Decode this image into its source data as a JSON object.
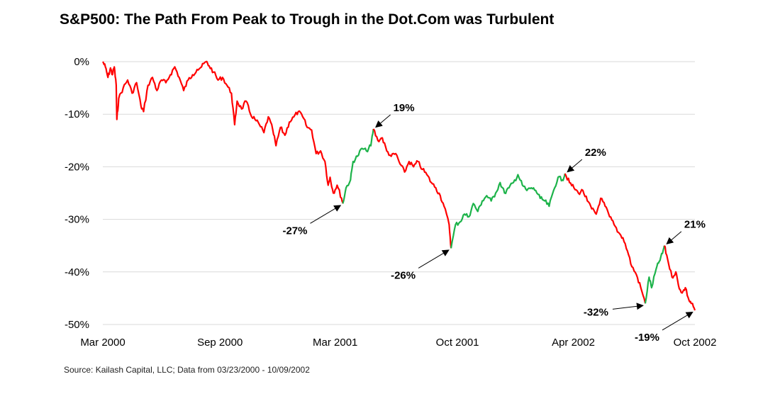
{
  "title": "S&P500: The Path From Peak to Trough in the Dot.Com was Turbulent",
  "source": "Source: Kailash Capital, LLC; Data from 03/23/2000 - 10/09/2002",
  "colors": {
    "decline": "#ff0000",
    "rally": "#1db34a",
    "grid": "#d9d9d9",
    "arrow": "#000000"
  },
  "chart_data": {
    "type": "line",
    "title": "S&P500: The Path From Peak to Trough in the Dot.Com was Turbulent",
    "xlabel": "",
    "ylabel": "",
    "xlim": [
      "2000-03-23",
      "2002-10-09"
    ],
    "ylim": [
      -50,
      0
    ],
    "grid": "horizontal",
    "x_tick_labels": [
      "Mar 2000",
      "Sep 2000",
      "Mar 2001",
      "Oct 2001",
      "Apr 2002",
      "Oct 2002"
    ],
    "x_tick_dates": [
      "2000-03-23",
      "2000-09-23",
      "2001-03-23",
      "2001-10-01",
      "2002-04-01",
      "2002-10-09"
    ],
    "y_ticks": [
      0,
      -10,
      -20,
      -30,
      -40,
      -50
    ],
    "y_tick_labels": [
      "0%",
      "-10%",
      "-20%",
      "-30%",
      "-40%",
      "-50%"
    ],
    "series": [
      {
        "values_pct_from_peak": [
          [
            "2000-03-23",
            0.0
          ],
          [
            "2000-03-27",
            -1.0
          ],
          [
            "2000-03-31",
            -3.0
          ],
          [
            "2000-04-04",
            -1.2
          ],
          [
            "2000-04-07",
            -2.5
          ],
          [
            "2000-04-10",
            -1.0
          ],
          [
            "2000-04-13",
            -4.5
          ],
          [
            "2000-04-14",
            -11.0
          ],
          [
            "2000-04-17",
            -7.0
          ],
          [
            "2000-04-24",
            -5.0
          ],
          [
            "2000-05-01",
            -3.5
          ],
          [
            "2000-05-08",
            -6.0
          ],
          [
            "2000-05-15",
            -4.0
          ],
          [
            "2000-05-22",
            -8.5
          ],
          [
            "2000-05-26",
            -9.5
          ],
          [
            "2000-06-02",
            -4.5
          ],
          [
            "2000-06-09",
            -3.0
          ],
          [
            "2000-06-16",
            -5.5
          ],
          [
            "2000-06-23",
            -3.5
          ],
          [
            "2000-06-30",
            -4.0
          ],
          [
            "2000-07-07",
            -2.5
          ],
          [
            "2000-07-14",
            -1.0
          ],
          [
            "2000-07-21",
            -3.0
          ],
          [
            "2000-07-28",
            -5.5
          ],
          [
            "2000-08-04",
            -3.5
          ],
          [
            "2000-08-11",
            -2.5
          ],
          [
            "2000-08-18",
            -1.5
          ],
          [
            "2000-08-25",
            -1.0
          ],
          [
            "2000-09-01",
            0.0
          ],
          [
            "2000-09-06",
            -0.8
          ],
          [
            "2000-09-13",
            -2.0
          ],
          [
            "2000-09-20",
            -3.5
          ],
          [
            "2000-09-27",
            -3.0
          ],
          [
            "2000-10-04",
            -4.5
          ],
          [
            "2000-10-11",
            -6.0
          ],
          [
            "2000-10-16",
            -12.0
          ],
          [
            "2000-10-20",
            -7.5
          ],
          [
            "2000-10-27",
            -9.0
          ],
          [
            "2000-11-03",
            -7.5
          ],
          [
            "2000-11-10",
            -10.0
          ],
          [
            "2000-11-17",
            -11.0
          ],
          [
            "2000-11-24",
            -12.0
          ],
          [
            "2000-12-01",
            -13.5
          ],
          [
            "2000-12-08",
            -10.5
          ],
          [
            "2000-12-15",
            -13.0
          ],
          [
            "2000-12-20",
            -16.0
          ],
          [
            "2000-12-27",
            -12.5
          ],
          [
            "2001-01-03",
            -14.0
          ],
          [
            "2001-01-10",
            -11.5
          ],
          [
            "2001-01-17",
            -10.5
          ],
          [
            "2001-01-24",
            -9.5
          ],
          [
            "2001-01-31",
            -10.5
          ],
          [
            "2001-02-07",
            -12.5
          ],
          [
            "2001-02-14",
            -13.0
          ],
          [
            "2001-02-21",
            -17.5
          ],
          [
            "2001-02-28",
            -17.0
          ],
          [
            "2001-03-07",
            -19.0
          ],
          [
            "2001-03-12",
            -23.5
          ],
          [
            "2001-03-15",
            -22.0
          ],
          [
            "2001-03-20",
            -25.0
          ],
          [
            "2001-03-26",
            -23.5
          ],
          [
            "2001-04-02",
            -26.0
          ],
          [
            "2001-04-04",
            -27.0
          ]
        ],
        "color": "decline"
      },
      {
        "values_pct_from_peak": [
          [
            "2001-04-04",
            -27.0
          ],
          [
            "2001-04-09",
            -24.0
          ],
          [
            "2001-04-16",
            -22.5
          ],
          [
            "2001-04-20",
            -19.0
          ],
          [
            "2001-04-27",
            -18.0
          ],
          [
            "2001-05-04",
            -16.5
          ],
          [
            "2001-05-11",
            -17.0
          ],
          [
            "2001-05-18",
            -16.0
          ],
          [
            "2001-05-22",
            -12.8
          ]
        ],
        "color": "rally"
      },
      {
        "values_pct_from_peak": [
          [
            "2001-05-22",
            -12.8
          ],
          [
            "2001-05-29",
            -15.0
          ],
          [
            "2001-06-05",
            -14.5
          ],
          [
            "2001-06-12",
            -17.0
          ],
          [
            "2001-06-19",
            -18.0
          ],
          [
            "2001-06-26",
            -17.5
          ],
          [
            "2001-07-03",
            -19.5
          ],
          [
            "2001-07-10",
            -21.0
          ],
          [
            "2001-07-17",
            -19.0
          ],
          [
            "2001-07-24",
            -20.0
          ],
          [
            "2001-07-31",
            -19.0
          ],
          [
            "2001-08-07",
            -20.5
          ],
          [
            "2001-08-14",
            -21.5
          ],
          [
            "2001-08-21",
            -23.0
          ],
          [
            "2001-08-28",
            -24.0
          ],
          [
            "2001-09-04",
            -25.5
          ],
          [
            "2001-09-10",
            -27.5
          ],
          [
            "2001-09-18",
            -31.0
          ],
          [
            "2001-09-21",
            -35.5
          ]
        ],
        "color": "decline"
      },
      {
        "values_pct_from_peak": [
          [
            "2001-09-21",
            -35.5
          ],
          [
            "2001-09-28",
            -31.0
          ],
          [
            "2001-10-05",
            -30.5
          ],
          [
            "2001-10-12",
            -29.0
          ],
          [
            "2001-10-19",
            -29.5
          ],
          [
            "2001-10-26",
            -27.0
          ],
          [
            "2001-11-02",
            -28.5
          ],
          [
            "2001-11-09",
            -26.5
          ],
          [
            "2001-11-16",
            -25.5
          ],
          [
            "2001-11-23",
            -26.5
          ],
          [
            "2001-11-30",
            -25.0
          ],
          [
            "2001-12-07",
            -23.0
          ],
          [
            "2001-12-14",
            -25.0
          ],
          [
            "2001-12-21",
            -24.0
          ],
          [
            "2001-12-28",
            -23.0
          ],
          [
            "2002-01-04",
            -21.5
          ],
          [
            "2002-01-11",
            -23.5
          ],
          [
            "2002-01-18",
            -24.5
          ],
          [
            "2002-01-25",
            -24.0
          ],
          [
            "2002-02-01",
            -24.5
          ],
          [
            "2002-02-08",
            -26.0
          ],
          [
            "2002-02-15",
            -26.5
          ],
          [
            "2002-02-22",
            -27.5
          ],
          [
            "2002-03-01",
            -24.5
          ],
          [
            "2002-03-08",
            -22.0
          ],
          [
            "2002-03-15",
            -22.5
          ],
          [
            "2002-03-19",
            -21.3
          ]
        ],
        "color": "rally"
      },
      {
        "values_pct_from_peak": [
          [
            "2002-03-19",
            -21.3
          ],
          [
            "2002-03-26",
            -23.0
          ],
          [
            "2002-04-02",
            -24.0
          ],
          [
            "2002-04-09",
            -25.0
          ],
          [
            "2002-04-16",
            -24.5
          ],
          [
            "2002-04-23",
            -26.5
          ],
          [
            "2002-04-30",
            -28.0
          ],
          [
            "2002-05-07",
            -29.0
          ],
          [
            "2002-05-14",
            -26.0
          ],
          [
            "2002-05-21",
            -27.5
          ],
          [
            "2002-05-28",
            -29.5
          ],
          [
            "2002-06-04",
            -31.0
          ],
          [
            "2002-06-11",
            -32.5
          ],
          [
            "2002-06-18",
            -33.5
          ],
          [
            "2002-06-25",
            -36.0
          ],
          [
            "2002-07-02",
            -39.0
          ],
          [
            "2002-07-09",
            -40.5
          ],
          [
            "2002-07-16",
            -43.0
          ],
          [
            "2002-07-23",
            -46.0
          ]
        ],
        "color": "decline"
      },
      {
        "values_pct_from_peak": [
          [
            "2002-07-23",
            -46.0
          ],
          [
            "2002-07-29",
            -41.0
          ],
          [
            "2002-08-02",
            -43.0
          ],
          [
            "2002-08-09",
            -39.5
          ],
          [
            "2002-08-14",
            -38.0
          ],
          [
            "2002-08-19",
            -36.5
          ],
          [
            "2002-08-22",
            -35.0
          ]
        ],
        "color": "rally"
      },
      {
        "values_pct_from_peak": [
          [
            "2002-08-22",
            -35.0
          ],
          [
            "2002-08-27",
            -37.5
          ],
          [
            "2002-09-03",
            -41.0
          ],
          [
            "2002-09-09",
            -40.0
          ],
          [
            "2002-09-13",
            -42.5
          ],
          [
            "2002-09-19",
            -44.0
          ],
          [
            "2002-09-24",
            -43.0
          ],
          [
            "2002-09-30",
            -45.5
          ],
          [
            "2002-10-04",
            -46.0
          ],
          [
            "2002-10-09",
            -47.3
          ]
        ],
        "color": "decline"
      }
    ],
    "annotations": [
      {
        "label": "-27%",
        "at": [
          "2001-04-04",
          -27.0
        ],
        "text_side": "below-left"
      },
      {
        "label": "19%",
        "at": [
          "2001-05-22",
          -12.8
        ],
        "text_side": "above-right"
      },
      {
        "label": "-26%",
        "at": [
          "2001-09-21",
          -35.5
        ],
        "text_side": "below-left"
      },
      {
        "label": "22%",
        "at": [
          "2002-03-19",
          -21.3
        ],
        "text_side": "above-right"
      },
      {
        "label": "-32%",
        "at": [
          "2002-07-23",
          -46.0
        ],
        "text_side": "left"
      },
      {
        "label": "21%",
        "at": [
          "2002-08-22",
          -35.0
        ],
        "text_side": "above-right"
      },
      {
        "label": "-19%",
        "at": [
          "2002-10-09",
          -47.3
        ],
        "text_side": "below-left"
      }
    ]
  }
}
